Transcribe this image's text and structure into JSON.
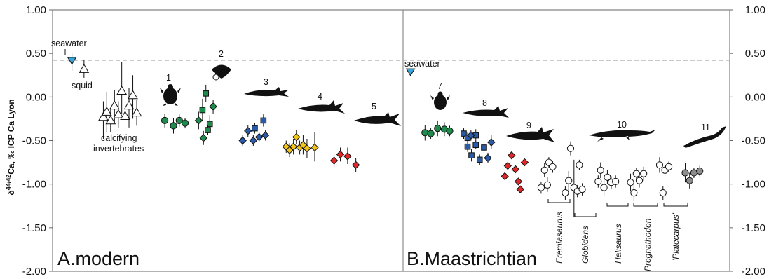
{
  "chart_data": {
    "type": "scatter",
    "ylabel_html": "δ44/42Ca, ‰ ICP Ca Lyon",
    "ylabel_pre": "δ",
    "ylabel_sup": "44/42",
    "ylabel_post": "Ca, ‰ ICP Ca Lyon",
    "ylim": [
      -2.0,
      1.0
    ],
    "yticks": [
      "1.00",
      "0.50",
      "0.00",
      "-0.50",
      "-1.00",
      "-1.50",
      "-2.00"
    ],
    "ytick_values": [
      1.0,
      0.5,
      0.0,
      -0.5,
      -1.0,
      -1.5,
      -2.0
    ],
    "reference_line": 0.42,
    "panels": [
      {
        "id": "A",
        "title": "A.modern"
      },
      {
        "id": "B",
        "title": "B.Maastrichtian"
      }
    ],
    "annotations": {
      "seawater_a": "seawater",
      "seawater_b": "seawater",
      "squid": "squid",
      "calcifying_1": "calcifying",
      "calcifying_2": "invertebrates",
      "groups": [
        "1",
        "2",
        "3",
        "4",
        "5",
        "7",
        "8",
        "9",
        "10",
        "11"
      ],
      "taxa": [
        "Eremiasaurus",
        "Globidens",
        "Halisaurus",
        "Prognathodon",
        "'Platecarpus'"
      ]
    },
    "colors": {
      "seawater": "#3aa3d8",
      "green": "#1f8a4c",
      "blue": "#2b5aa6",
      "yellow": "#f2c418",
      "red": "#e0282a",
      "grey": "#8c8c8c",
      "white": "#ffffff"
    },
    "series": [
      {
        "group": "seawater-a",
        "marker": "triangle-down",
        "color": "seawater",
        "points": [
          {
            "x": 0.4,
            "y": 0.42,
            "lo": 0.3,
            "hi": 0.5
          }
        ]
      },
      {
        "group": "squid",
        "marker": "triangle-up-open",
        "color": "white",
        "points": [
          {
            "x": 0.65,
            "y": 0.32,
            "lo": 0.22,
            "hi": 0.42
          }
        ]
      },
      {
        "group": "calcifying invertebrates",
        "marker": "triangle-up-open",
        "color": "white",
        "points": [
          {
            "x": 1.05,
            "y": -0.23,
            "lo": -0.48,
            "hi": -0.05
          },
          {
            "x": 1.12,
            "y": -0.17,
            "lo": -0.4,
            "hi": 0.06
          },
          {
            "x": 1.2,
            "y": -0.27,
            "lo": -0.4,
            "hi": -0.13
          },
          {
            "x": 1.28,
            "y": -0.1,
            "lo": -0.3,
            "hi": 0.08
          },
          {
            "x": 1.36,
            "y": -0.2,
            "lo": -0.35,
            "hi": -0.05
          },
          {
            "x": 1.43,
            "y": 0.07,
            "lo": -0.2,
            "hi": 0.4
          },
          {
            "x": 1.5,
            "y": -0.22,
            "lo": -0.45,
            "hi": 0.05
          },
          {
            "x": 1.58,
            "y": -0.1,
            "lo": -0.35,
            "hi": 0.1
          },
          {
            "x": 1.66,
            "y": 0.02,
            "lo": -0.25,
            "hi": 0.25
          },
          {
            "x": 1.74,
            "y": -0.18,
            "lo": -0.33,
            "hi": -0.03
          }
        ]
      },
      {
        "group": "1",
        "marker": "circle",
        "color": "green",
        "points": [
          {
            "x": 2.32,
            "y": -0.27,
            "lo": -0.35,
            "hi": -0.19
          },
          {
            "x": 2.5,
            "y": -0.33,
            "lo": -0.42,
            "hi": -0.24
          },
          {
            "x": 2.62,
            "y": -0.27,
            "lo": -0.34,
            "hi": -0.2
          },
          {
            "x": 2.74,
            "y": -0.3,
            "lo": -0.36,
            "hi": -0.24
          }
        ]
      },
      {
        "group": "2-diamond",
        "marker": "diamond",
        "color": "green",
        "points": [
          {
            "x": 3.02,
            "y": -0.27,
            "lo": -0.37,
            "hi": -0.17
          },
          {
            "x": 3.12,
            "y": -0.47,
            "lo": -0.55,
            "hi": -0.39
          },
          {
            "x": 3.32,
            "y": -0.11,
            "lo": -0.19,
            "hi": -0.03
          }
        ]
      },
      {
        "group": "2-square",
        "marker": "square",
        "color": "green",
        "points": [
          {
            "x": 3.1,
            "y": -0.15,
            "lo": -0.28,
            "hi": -0.02
          },
          {
            "x": 3.17,
            "y": 0.04,
            "lo": -0.06,
            "hi": 0.14
          },
          {
            "x": 3.25,
            "y": -0.31,
            "lo": -0.41,
            "hi": -0.21
          },
          {
            "x": 3.21,
            "y": -0.38,
            "lo": -0.44,
            "hi": -0.32
          }
        ]
      },
      {
        "group": "3",
        "marker": "diamond",
        "color": "blue",
        "points": [
          {
            "x": 3.93,
            "y": -0.5,
            "lo": -0.56,
            "hi": -0.44
          },
          {
            "x": 4.04,
            "y": -0.39,
            "lo": -0.46,
            "hi": -0.32
          },
          {
            "x": 4.15,
            "y": -0.5,
            "lo": -0.56,
            "hi": -0.44
          },
          {
            "x": 4.27,
            "y": -0.46,
            "lo": -0.52,
            "hi": -0.4
          },
          {
            "x": 4.4,
            "y": -0.44,
            "lo": -0.5,
            "hi": -0.38
          }
        ]
      },
      {
        "group": "3-square",
        "marker": "square",
        "color": "blue",
        "points": [
          {
            "x": 4.18,
            "y": -0.36,
            "lo": -0.42,
            "hi": -0.3
          },
          {
            "x": 4.36,
            "y": -0.27,
            "lo": -0.34,
            "hi": -0.2
          }
        ]
      },
      {
        "group": "4",
        "marker": "diamond",
        "color": "yellow",
        "points": [
          {
            "x": 4.83,
            "y": -0.57,
            "lo": -0.64,
            "hi": -0.5
          },
          {
            "x": 4.9,
            "y": -0.61,
            "lo": -0.69,
            "hi": -0.53
          },
          {
            "x": 4.98,
            "y": -0.57,
            "lo": -0.66,
            "hi": -0.48
          },
          {
            "x": 5.04,
            "y": -0.46,
            "lo": -0.54,
            "hi": -0.38
          },
          {
            "x": 5.11,
            "y": -0.58,
            "lo": -0.66,
            "hi": -0.5
          },
          {
            "x": 5.18,
            "y": -0.55,
            "lo": -0.66,
            "hi": -0.44
          },
          {
            "x": 5.26,
            "y": -0.59,
            "lo": -0.7,
            "hi": -0.48
          },
          {
            "x": 5.42,
            "y": -0.58,
            "lo": -0.74,
            "hi": -0.4
          }
        ]
      },
      {
        "group": "5",
        "marker": "diamond",
        "color": "red",
        "points": [
          {
            "x": 5.82,
            "y": -0.73,
            "lo": -0.8,
            "hi": -0.66
          },
          {
            "x": 5.95,
            "y": -0.66,
            "lo": -0.74,
            "hi": -0.58
          },
          {
            "x": 6.1,
            "y": -0.68,
            "lo": -0.77,
            "hi": -0.58
          },
          {
            "x": 6.27,
            "y": -0.78,
            "lo": -0.86,
            "hi": -0.7
          }
        ]
      },
      {
        "group": "seawater-b",
        "marker": "triangle-down",
        "color": "seawater",
        "points": [
          {
            "x": 7.4,
            "y": 0.29
          }
        ]
      },
      {
        "group": "7",
        "marker": "circle",
        "color": "green",
        "points": [
          {
            "x": 7.7,
            "y": -0.41,
            "lo": -0.5,
            "hi": -0.32
          },
          {
            "x": 7.82,
            "y": -0.42,
            "lo": -0.48,
            "hi": -0.36
          },
          {
            "x": 7.96,
            "y": -0.36,
            "lo": -0.45,
            "hi": -0.27
          },
          {
            "x": 8.1,
            "y": -0.37,
            "lo": -0.45,
            "hi": -0.29
          },
          {
            "x": 8.21,
            "y": -0.39,
            "lo": -0.45,
            "hi": -0.33
          }
        ]
      },
      {
        "group": "8-square",
        "marker": "square",
        "color": "blue",
        "points": [
          {
            "x": 8.5,
            "y": -0.42,
            "lo": -0.48,
            "hi": -0.36
          },
          {
            "x": 8.58,
            "y": -0.47,
            "lo": -0.53,
            "hi": -0.41
          },
          {
            "x": 8.58,
            "y": -0.57,
            "lo": -0.63,
            "hi": -0.51
          },
          {
            "x": 8.66,
            "y": -0.67,
            "lo": -0.74,
            "hi": -0.6
          },
          {
            "x": 8.75,
            "y": -0.44,
            "lo": -0.51,
            "hi": -0.37
          },
          {
            "x": 8.75,
            "y": -0.55,
            "lo": -0.6,
            "hi": -0.5
          },
          {
            "x": 8.83,
            "y": -0.72,
            "lo": -0.78,
            "hi": -0.66
          },
          {
            "x": 8.92,
            "y": -0.58,
            "lo": -0.64,
            "hi": -0.52
          }
        ]
      },
      {
        "group": "8-diamond",
        "marker": "diamond",
        "color": "blue",
        "points": [
          {
            "x": 8.65,
            "y": -0.44,
            "lo": -0.5,
            "hi": -0.38
          },
          {
            "x": 9.0,
            "y": -0.7,
            "lo": -0.76,
            "hi": -0.64
          },
          {
            "x": 9.07,
            "y": -0.52,
            "lo": -0.6,
            "hi": -0.44
          }
        ]
      },
      {
        "group": "9",
        "marker": "diamond",
        "color": "red",
        "points": [
          {
            "x": 9.35,
            "y": -0.91
          },
          {
            "x": 9.41,
            "y": -0.79
          },
          {
            "x": 9.49,
            "y": -0.67
          },
          {
            "x": 9.57,
            "y": -0.83
          },
          {
            "x": 9.63,
            "y": -0.97
          },
          {
            "x": 9.67,
            "y": -1.06
          },
          {
            "x": 9.76,
            "y": -0.75
          }
        ]
      },
      {
        "group": "Eremiasaurus",
        "marker": "circle-open",
        "color": "white",
        "points": [
          {
            "x": 10.1,
            "y": -1.04,
            "lo": -1.11,
            "hi": -0.97
          },
          {
            "x": 10.17,
            "y": -0.84,
            "lo": -0.92,
            "hi": -0.76
          },
          {
            "x": 10.23,
            "y": -1.01,
            "lo": -1.09,
            "hi": -0.92
          },
          {
            "x": 10.26,
            "y": -0.75,
            "lo": -0.81,
            "hi": -0.69
          },
          {
            "x": 10.34,
            "y": -0.8,
            "lo": -0.87,
            "hi": -0.73
          }
        ]
      },
      {
        "group": "Globidens",
        "marker": "circle-open",
        "color": "white",
        "points": [
          {
            "x": 10.6,
            "y": -1.1,
            "lo": -1.18,
            "hi": -1.02
          },
          {
            "x": 10.67,
            "y": -0.96,
            "lo": -1.08,
            "hi": -0.85
          },
          {
            "x": 10.71,
            "y": -0.59,
            "lo": -0.67,
            "hi": -0.51
          },
          {
            "x": 10.78,
            "y": -1.04,
            "lo": -1.38,
            "hi": -0.72
          },
          {
            "x": 10.85,
            "y": -1.08,
            "lo": -1.15,
            "hi": -1.01
          },
          {
            "x": 10.89,
            "y": -0.78,
            "lo": -0.84,
            "hi": -0.72
          },
          {
            "x": 10.95,
            "y": -1.06,
            "lo": -1.13,
            "hi": -0.99
          }
        ]
      },
      {
        "group": "Halisaurus",
        "marker": "circle-open",
        "color": "white",
        "points": [
          {
            "x": 11.28,
            "y": -0.97,
            "lo": -1.04,
            "hi": -0.9
          },
          {
            "x": 11.33,
            "y": -0.84,
            "lo": -0.93,
            "hi": -0.75
          },
          {
            "x": 11.4,
            "y": -1.04,
            "lo": -1.14,
            "hi": -0.94
          },
          {
            "x": 11.47,
            "y": -0.92,
            "lo": -1.0,
            "hi": -0.84
          },
          {
            "x": 11.55,
            "y": -0.98,
            "lo": -1.05,
            "hi": -0.91
          },
          {
            "x": 11.64,
            "y": -0.97,
            "lo": -1.04,
            "hi": -0.9
          }
        ]
      },
      {
        "group": "Prognathodon",
        "marker": "circle-open",
        "color": "white",
        "points": [
          {
            "x": 11.95,
            "y": -0.98,
            "lo": -1.08,
            "hi": -0.88
          },
          {
            "x": 12.02,
            "y": -1.1,
            "lo": -1.2,
            "hi": -1.0
          },
          {
            "x": 12.07,
            "y": -0.88,
            "lo": -0.95,
            "hi": -0.81
          },
          {
            "x": 12.13,
            "y": -0.96,
            "lo": -1.04,
            "hi": -0.88
          },
          {
            "x": 12.22,
            "y": -0.88,
            "lo": -0.96,
            "hi": -0.8
          }
        ]
      },
      {
        "group": "'Platecarpus'",
        "marker": "circle-open",
        "color": "white",
        "points": [
          {
            "x": 12.55,
            "y": -0.78,
            "lo": -0.87,
            "hi": -0.69
          },
          {
            "x": 12.62,
            "y": -1.1,
            "lo": -1.18,
            "hi": -1.02
          },
          {
            "x": 12.66,
            "y": -0.84,
            "lo": -0.92,
            "hi": -0.76
          },
          {
            "x": 12.74,
            "y": -0.8,
            "lo": -0.86,
            "hi": -0.74
          }
        ]
      },
      {
        "group": "11",
        "marker": "circle",
        "color": "grey",
        "points": [
          {
            "x": 13.08,
            "y": -0.87,
            "lo": -0.98,
            "hi": -0.76
          },
          {
            "x": 13.17,
            "y": -0.96,
            "lo": -1.05,
            "hi": -0.87
          },
          {
            "x": 13.26,
            "y": -0.87,
            "lo": -0.93,
            "hi": -0.81
          },
          {
            "x": 13.38,
            "y": -0.85,
            "lo": -0.91,
            "hi": -0.79
          }
        ]
      }
    ]
  }
}
